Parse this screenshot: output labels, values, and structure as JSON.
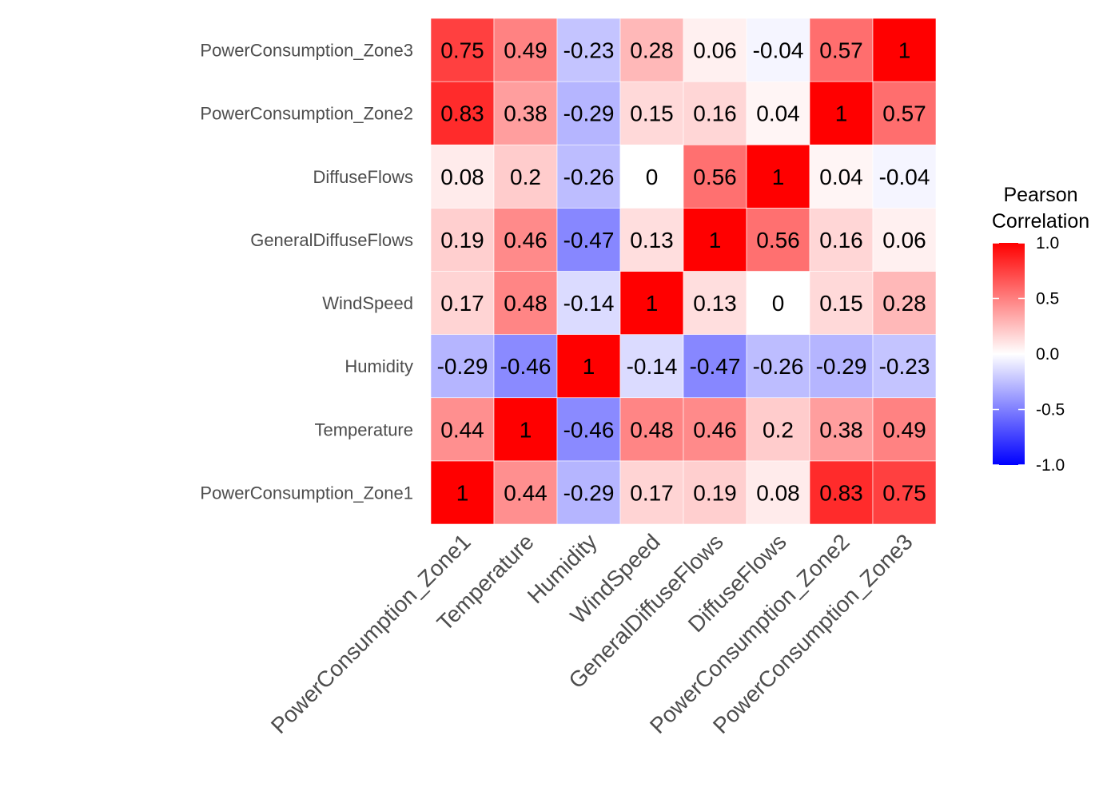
{
  "chart_data": {
    "type": "heatmap",
    "title": "",
    "xlabel": "",
    "ylabel": "",
    "x_categories": [
      "PowerConsumption_Zone1",
      "Temperature",
      "Humidity",
      "WindSpeed",
      "GeneralDiffuseFlows",
      "DiffuseFlows",
      "PowerConsumption_Zone2",
      "PowerConsumption_Zone3"
    ],
    "y_categories": [
      "PowerConsumption_Zone1",
      "Temperature",
      "Humidity",
      "WindSpeed",
      "GeneralDiffuseFlows",
      "DiffuseFlows",
      "PowerConsumption_Zone2",
      "PowerConsumption_Zone3"
    ],
    "values": [
      [
        1,
        0.44,
        -0.29,
        0.17,
        0.19,
        0.08,
        0.83,
        0.75
      ],
      [
        0.44,
        1,
        -0.46,
        0.48,
        0.46,
        0.2,
        0.38,
        0.49
      ],
      [
        -0.29,
        -0.46,
        1,
        -0.14,
        -0.47,
        -0.26,
        -0.29,
        -0.23
      ],
      [
        0.17,
        0.48,
        -0.14,
        1,
        0.13,
        0,
        0.15,
        0.28
      ],
      [
        0.19,
        0.46,
        -0.47,
        0.13,
        1,
        0.56,
        0.16,
        0.06
      ],
      [
        0.08,
        0.2,
        -0.26,
        0,
        0.56,
        1,
        0.04,
        -0.04
      ],
      [
        0.83,
        0.38,
        -0.29,
        0.15,
        0.16,
        0.04,
        1,
        0.57
      ],
      [
        0.75,
        0.49,
        -0.23,
        0.28,
        0.06,
        -0.04,
        0.57,
        1
      ]
    ],
    "color_scale": {
      "low": "#0000ff",
      "mid": "#ffffff",
      "high": "#ff0000",
      "limits": [
        -1,
        1
      ]
    },
    "legend": {
      "title_lines": [
        "Pearson",
        "Correlation"
      ],
      "ticks": [
        "1.0",
        "0.5",
        "0.0",
        "-0.5",
        "-1.0"
      ],
      "tick_values": [
        1,
        0.5,
        0,
        -0.5,
        -1
      ],
      "position": "right"
    },
    "grid": false
  }
}
